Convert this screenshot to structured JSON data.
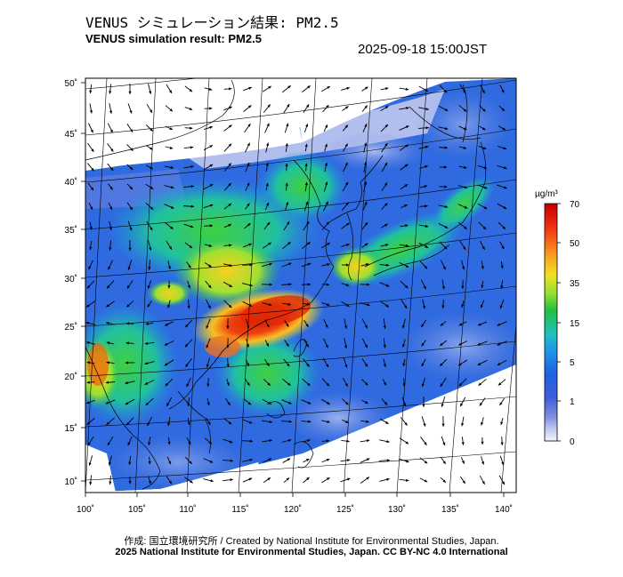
{
  "title_jp": "VENUS シミュレーション結果: PM2.5",
  "title_en": "VENUS simulation result: PM2.5",
  "timestamp": "2025-09-18 15:00JST",
  "colorbar": {
    "unit": "µg/m³",
    "ticks": [
      "70",
      "50",
      "35",
      "15",
      "5",
      "1",
      "0"
    ],
    "colors": [
      "#c00000",
      "#f03010",
      "#f7a020",
      "#f5e020",
      "#90e030",
      "#20c040",
      "#20c0c0",
      "#2090e8",
      "#2060e0",
      "#4060d8",
      "#8090e0",
      "#c0c8f0",
      "#f4f4fc"
    ]
  },
  "axes": {
    "lon_labels": [
      "100˚",
      "105˚",
      "110˚",
      "115˚",
      "120˚",
      "125˚",
      "130˚",
      "135˚",
      "140˚"
    ],
    "lat_labels": [
      "50˚",
      "45˚",
      "40˚",
      "35˚",
      "30˚",
      "25˚",
      "20˚",
      "15˚",
      "10˚"
    ]
  },
  "credit": "作成: 国立環境研究所 / Created by National Institute for Environmental Studies, Japan.",
  "copyright": "2025 National Institute for Environmental Studies, Japan. CC BY-NC 4.0 International"
}
